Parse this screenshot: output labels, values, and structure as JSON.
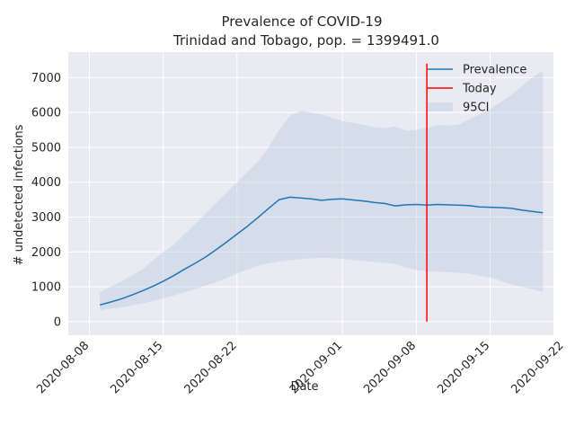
{
  "chart_data": {
    "type": "line",
    "title": "Prevalence of COVID-19",
    "subtitle": "Trinidad and Tobago, pop. = 1399491.0",
    "xlabel": "Date",
    "ylabel": "# undetected infections",
    "xlim": [
      "2020-08-06",
      "2020-09-21"
    ],
    "ylim": [
      -390,
      7730
    ],
    "grid": true,
    "legend_position": "top-right",
    "x_ticks": [
      "2020-08-08",
      "2020-08-15",
      "2020-08-22",
      "2020-09-01",
      "2020-09-08",
      "2020-09-15",
      "2020-09-22"
    ],
    "y_ticks": [
      0,
      1000,
      2000,
      3000,
      4000,
      5000,
      6000,
      7000
    ],
    "series": [
      {
        "name": "Prevalence",
        "color": "#1f77b4",
        "x": [
          "2020-08-09",
          "2020-08-10",
          "2020-08-11",
          "2020-08-12",
          "2020-08-13",
          "2020-08-14",
          "2020-08-15",
          "2020-08-16",
          "2020-08-17",
          "2020-08-18",
          "2020-08-19",
          "2020-08-20",
          "2020-08-21",
          "2020-08-22",
          "2020-08-23",
          "2020-08-24",
          "2020-08-25",
          "2020-08-26",
          "2020-08-27",
          "2020-08-28",
          "2020-08-29",
          "2020-08-30",
          "2020-08-31",
          "2020-09-01",
          "2020-09-02",
          "2020-09-03",
          "2020-09-04",
          "2020-09-05",
          "2020-09-06",
          "2020-09-07",
          "2020-09-08",
          "2020-09-09",
          "2020-09-10",
          "2020-09-11",
          "2020-09-12",
          "2020-09-13",
          "2020-09-14",
          "2020-09-15",
          "2020-09-16",
          "2020-09-17",
          "2020-09-18",
          "2020-09-19",
          "2020-09-20"
        ],
        "y": [
          480,
          560,
          650,
          760,
          880,
          1010,
          1160,
          1320,
          1500,
          1670,
          1850,
          2060,
          2280,
          2510,
          2740,
          2990,
          3250,
          3500,
          3570,
          3550,
          3520,
          3480,
          3510,
          3520,
          3490,
          3460,
          3420,
          3390,
          3320,
          3350,
          3360,
          3340,
          3360,
          3350,
          3340,
          3330,
          3290,
          3280,
          3270,
          3250,
          3200,
          3160,
          3120
        ]
      },
      {
        "name": "Today",
        "color": "#ff0000",
        "x": [
          "2020-09-09",
          "2020-09-09"
        ],
        "y": [
          0,
          7400
        ]
      }
    ],
    "band": {
      "name": "95CI",
      "color": "#b0c4de",
      "x": [
        "2020-08-09",
        "2020-08-10",
        "2020-08-11",
        "2020-08-12",
        "2020-08-13",
        "2020-08-14",
        "2020-08-15",
        "2020-08-16",
        "2020-08-17",
        "2020-08-18",
        "2020-08-19",
        "2020-08-20",
        "2020-08-21",
        "2020-08-22",
        "2020-08-23",
        "2020-08-24",
        "2020-08-25",
        "2020-08-26",
        "2020-08-27",
        "2020-08-28",
        "2020-08-29",
        "2020-08-30",
        "2020-08-31",
        "2020-09-01",
        "2020-09-02",
        "2020-09-03",
        "2020-09-04",
        "2020-09-05",
        "2020-09-06",
        "2020-09-07",
        "2020-09-08",
        "2020-09-09",
        "2020-09-10",
        "2020-09-11",
        "2020-09-12",
        "2020-09-13",
        "2020-09-14",
        "2020-09-15",
        "2020-09-16",
        "2020-09-17",
        "2020-09-18",
        "2020-09-19",
        "2020-09-20"
      ],
      "lower": [
        330,
        370,
        410,
        460,
        520,
        590,
        670,
        750,
        840,
        930,
        1030,
        1130,
        1250,
        1380,
        1500,
        1600,
        1680,
        1720,
        1760,
        1790,
        1820,
        1830,
        1820,
        1800,
        1770,
        1740,
        1710,
        1690,
        1650,
        1560,
        1480,
        1450,
        1430,
        1420,
        1400,
        1380,
        1320,
        1270,
        1170,
        1070,
        1000,
        930,
        850
      ],
      "upper": [
        850,
        1000,
        1150,
        1320,
        1500,
        1750,
        2000,
        2200,
        2500,
        2800,
        3100,
        3400,
        3700,
        4000,
        4300,
        4600,
        5000,
        5500,
        5900,
        6050,
        6000,
        5950,
        5850,
        5750,
        5700,
        5650,
        5580,
        5550,
        5600,
        5480,
        5500,
        5550,
        5650,
        5620,
        5650,
        5800,
        5950,
        6100,
        6300,
        6500,
        6750,
        7000,
        7200
      ]
    }
  }
}
